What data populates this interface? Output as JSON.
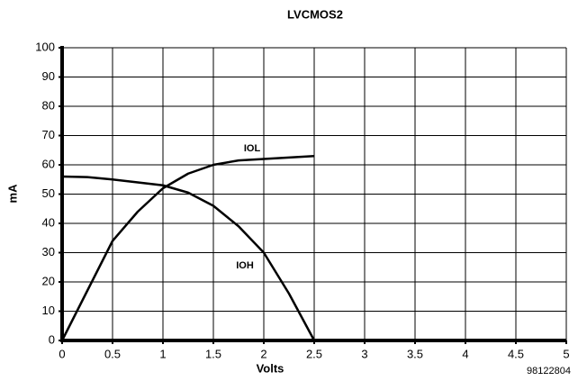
{
  "chart_data": {
    "type": "line",
    "title": "LVCMOS2",
    "x_label": "Volts",
    "y_label": "mA",
    "footnote": "98122804",
    "x": [
      0,
      0.25,
      0.5,
      0.75,
      1,
      1.25,
      1.5,
      1.75,
      2,
      2.25,
      2.5
    ],
    "series": [
      {
        "name": "IOL",
        "color": "#000000",
        "values": [
          0,
          17,
          34,
          44,
          52,
          57,
          60,
          61.5,
          62,
          62.5,
          63
        ]
      },
      {
        "name": "IOH",
        "color": "#000000",
        "values": [
          56,
          55.8,
          55,
          54,
          53,
          50.5,
          46,
          39,
          30,
          16,
          0
        ]
      }
    ],
    "xlim": [
      0,
      5
    ],
    "xticks": [
      0,
      0.5,
      1,
      1.5,
      2,
      2.5,
      3,
      3.5,
      4,
      4.5,
      5
    ],
    "ylim": [
      0,
      100
    ],
    "yticks": [
      0,
      10,
      20,
      30,
      40,
      50,
      60,
      70,
      80,
      90,
      100
    ],
    "grid": true
  }
}
